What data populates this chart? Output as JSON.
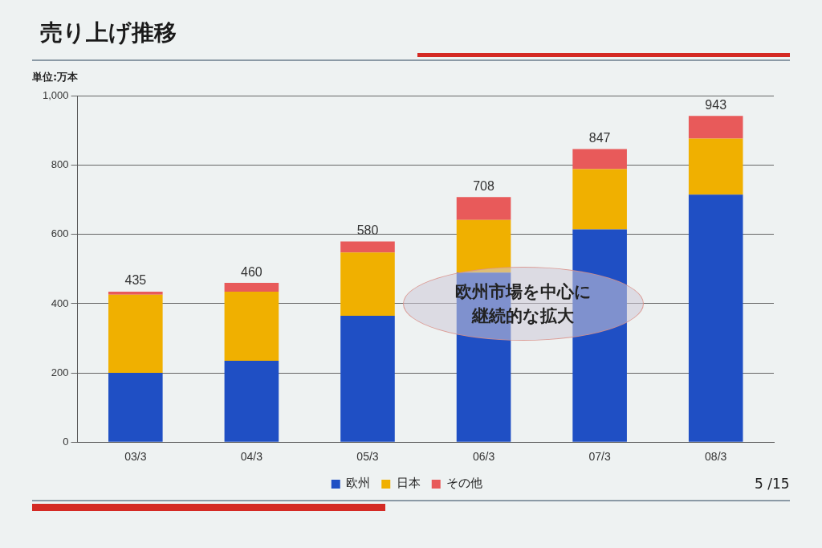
{
  "chart_data": {
    "type": "bar",
    "title": "売り上げ推移",
    "ylabel": "単位:万本",
    "categories": [
      "03/3",
      "04/3",
      "05/3",
      "06/3",
      "07/3",
      "08/3"
    ],
    "series": [
      {
        "name": "欧州",
        "color": "#1f4fc4",
        "values": [
          200,
          235,
          365,
          490,
          615,
          715
        ]
      },
      {
        "name": "日本",
        "color": "#f0b000",
        "values": [
          226,
          200,
          183,
          152,
          174,
          162
        ]
      },
      {
        "name": "その他",
        "color": "#e85a5a",
        "values": [
          9,
          25,
          32,
          66,
          58,
          66
        ]
      }
    ],
    "stacked": true,
    "ylim": [
      0,
      1000
    ],
    "yticks": [
      0,
      200,
      400,
      600,
      800,
      {
        "value": 1000,
        "label": "1,000"
      }
    ],
    "grid": "y",
    "legend": "bottom",
    "totals": [
      "435",
      "460",
      "580",
      "708",
      "847",
      "943"
    ],
    "annotations": [
      "欧州市場を中心に継続的な拡大",
      "5 /15"
    ]
  }
}
